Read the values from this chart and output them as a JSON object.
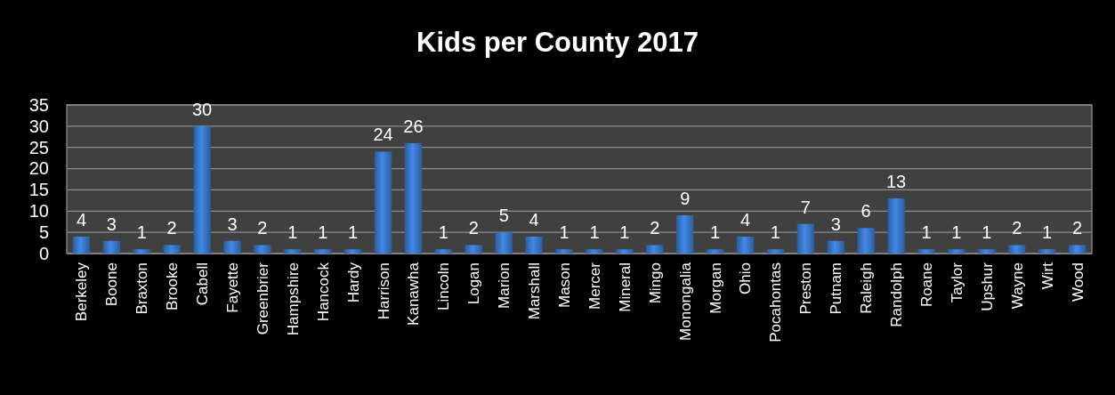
{
  "chart_data": {
    "type": "bar",
    "title": "Kids per County 2017",
    "categories": [
      "Berkeley",
      "Boone",
      "Braxton",
      "Brooke",
      "Cabell",
      "Fayette",
      "Greenbrier",
      "Hampshire",
      "Hancock",
      "Hardy",
      "Harrison",
      "Kanawha",
      "Lincoln",
      "Logan",
      "Marion",
      "Marshall",
      "Mason",
      "Mercer",
      "Mineral",
      "Mingo",
      "Monongalia",
      "Morgan",
      "Ohio",
      "Pocahontas",
      "Preston",
      "Putnam",
      "Raleigh",
      "Randolph",
      "Roane",
      "Taylor",
      "Upshur",
      "Wayne",
      "Wirt",
      "Wood"
    ],
    "values": [
      4,
      3,
      1,
      2,
      30,
      3,
      2,
      1,
      1,
      1,
      24,
      26,
      1,
      2,
      5,
      4,
      1,
      1,
      1,
      2,
      9,
      1,
      4,
      1,
      7,
      3,
      6,
      13,
      1,
      1,
      1,
      2,
      1,
      2
    ],
    "color": "#3b7bd0",
    "ylim": [
      0,
      35
    ],
    "yticks": [
      0,
      5,
      10,
      15,
      20,
      25,
      30,
      35
    ],
    "grid": "y",
    "data_labels": true
  }
}
